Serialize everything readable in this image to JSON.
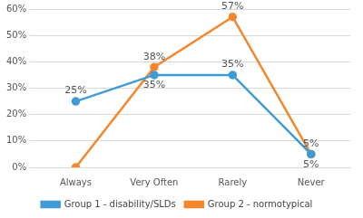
{
  "chart_data": {
    "type": "line",
    "categories": [
      "Always",
      "Very Often",
      "Rarely",
      "Never"
    ],
    "series": [
      {
        "name": "Group 1 - disability/SLDs",
        "color": "#3f9bd3",
        "marker": "circle",
        "values": [
          25,
          35,
          35,
          5
        ],
        "value_labels": [
          "25%",
          "35%",
          "35%",
          "5%"
        ]
      },
      {
        "name": "Group 2 - normotypical",
        "color": "#f5862c",
        "marker": "circle",
        "values": [
          0,
          38,
          57,
          5
        ],
        "value_labels": [
          null,
          "38%",
          "57%",
          "5%"
        ]
      }
    ],
    "ylim": [
      0,
      60
    ],
    "yticks": [
      {
        "value": 0,
        "label": "0%"
      },
      {
        "value": 10,
        "label": "10%"
      },
      {
        "value": 20,
        "label": "20%"
      },
      {
        "value": 30,
        "label": "30%"
      },
      {
        "value": 40,
        "label": "40%"
      },
      {
        "value": 50,
        "label": "50%"
      },
      {
        "value": 60,
        "label": "60%"
      }
    ],
    "grid": true,
    "legend": "bottom",
    "data_labels": true
  }
}
